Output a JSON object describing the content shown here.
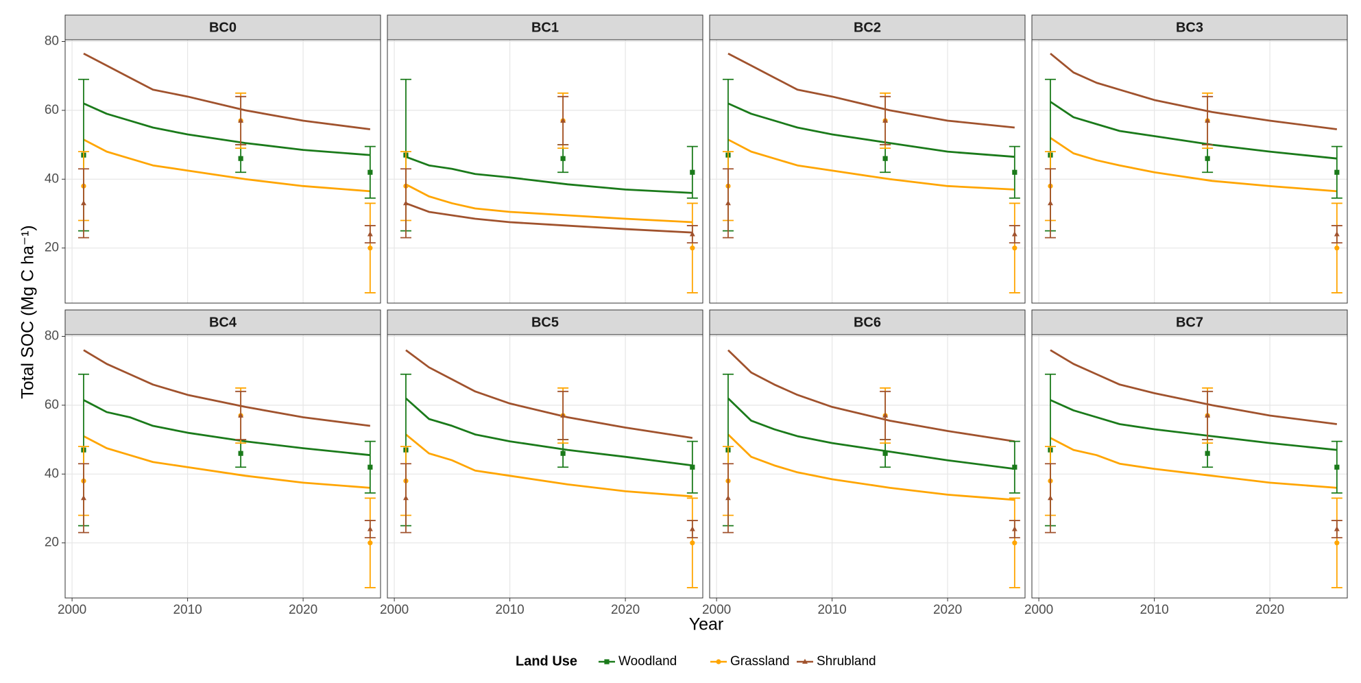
{
  "y_label": "Total SOC (Mg C ha⁻¹)",
  "x_label": "Year",
  "legend_title": "Land Use",
  "chart_data": [
    {
      "type": "line",
      "title": "BC0",
      "xlim": [
        1999.4,
        2026.7
      ],
      "ylim": [
        4,
        80.5
      ],
      "xticks": [
        2000,
        2010,
        2020
      ],
      "yticks": [
        20,
        40,
        60,
        80
      ],
      "grid": true,
      "x": [
        2001,
        2003,
        2005,
        2007,
        2010,
        2015,
        2020,
        2025.8
      ],
      "series": [
        {
          "name": "Woodland",
          "color": "#1a7a1a",
          "marker": "square",
          "values": [
            62,
            59,
            57,
            55,
            53,
            50.5,
            48.5,
            47
          ],
          "obs_x": [
            2001,
            2014.6,
            2025.8
          ],
          "obs_values": [
            47,
            46,
            42
          ],
          "obs_errors": [
            22,
            4,
            7.5
          ]
        },
        {
          "name": "Grassland",
          "color": "#ffa500",
          "marker": "circle",
          "values": [
            51.5,
            48,
            46,
            44,
            42.5,
            40,
            38,
            36.5
          ],
          "obs_x": [
            2001,
            2014.6,
            2025.8
          ],
          "obs_values": [
            38,
            57,
            20
          ],
          "obs_errors": [
            10,
            8,
            13
          ]
        },
        {
          "name": "Shrubland",
          "color": "#a0522d",
          "marker": "triangle",
          "values": [
            76.5,
            73,
            69.5,
            66,
            64,
            60,
            57,
            54.5
          ],
          "obs_x": [
            2001,
            2014.6,
            2025.8
          ],
          "obs_values": [
            33,
            57,
            24
          ],
          "obs_errors": [
            10,
            7,
            2.5
          ]
        }
      ]
    },
    {
      "type": "line",
      "title": "BC1",
      "xlim": [
        1999.4,
        2026.7
      ],
      "ylim": [
        4,
        80.5
      ],
      "xticks": [
        2000,
        2010,
        2020
      ],
      "yticks": [
        20,
        40,
        60,
        80
      ],
      "grid": true,
      "x": [
        2001,
        2003,
        2005,
        2007,
        2010,
        2015,
        2020,
        2025.8
      ],
      "series": [
        {
          "name": "Woodland",
          "color": "#1a7a1a",
          "marker": "square",
          "values": [
            46.5,
            44,
            43,
            41.5,
            40.5,
            38.5,
            37,
            36
          ],
          "obs_x": [
            2001,
            2014.6,
            2025.8
          ],
          "obs_values": [
            47,
            46,
            42
          ],
          "obs_errors": [
            22,
            4,
            7.5
          ]
        },
        {
          "name": "Grassland",
          "color": "#ffa500",
          "marker": "circle",
          "values": [
            38.5,
            35,
            33,
            31.5,
            30.5,
            29.5,
            28.5,
            27.5
          ],
          "obs_x": [
            2001,
            2014.6,
            2025.8
          ],
          "obs_values": [
            38,
            57,
            20
          ],
          "obs_errors": [
            10,
            8,
            13
          ]
        },
        {
          "name": "Shrubland",
          "color": "#a0522d",
          "marker": "triangle",
          "values": [
            33,
            30.5,
            29.5,
            28.5,
            27.5,
            26.5,
            25.5,
            24.5
          ],
          "obs_x": [
            2001,
            2014.6,
            2025.8
          ],
          "obs_values": [
            33,
            57,
            24
          ],
          "obs_errors": [
            10,
            7,
            2.5
          ]
        }
      ]
    },
    {
      "type": "line",
      "title": "BC2",
      "xlim": [
        1999.4,
        2026.7
      ],
      "ylim": [
        4,
        80.5
      ],
      "xticks": [
        2000,
        2010,
        2020
      ],
      "yticks": [
        20,
        40,
        60,
        80
      ],
      "grid": true,
      "x": [
        2001,
        2003,
        2005,
        2007,
        2010,
        2015,
        2020,
        2025.8
      ],
      "series": [
        {
          "name": "Woodland",
          "color": "#1a7a1a",
          "marker": "square",
          "values": [
            62,
            59,
            57,
            55,
            53,
            50.5,
            48,
            46.5
          ],
          "obs_x": [
            2001,
            2014.6,
            2025.8
          ],
          "obs_values": [
            47,
            46,
            42
          ],
          "obs_errors": [
            22,
            4,
            7.5
          ]
        },
        {
          "name": "Grassland",
          "color": "#ffa500",
          "marker": "circle",
          "values": [
            51.5,
            48,
            46,
            44,
            42.5,
            40,
            38,
            37
          ],
          "obs_x": [
            2001,
            2014.6,
            2025.8
          ],
          "obs_values": [
            38,
            57,
            20
          ],
          "obs_errors": [
            10,
            8,
            13
          ]
        },
        {
          "name": "Shrubland",
          "color": "#a0522d",
          "marker": "triangle",
          "values": [
            76.5,
            73,
            69.5,
            66,
            64,
            60,
            57,
            55
          ],
          "obs_x": [
            2001,
            2014.6,
            2025.8
          ],
          "obs_values": [
            33,
            57,
            24
          ],
          "obs_errors": [
            10,
            7,
            2.5
          ]
        }
      ]
    },
    {
      "type": "line",
      "title": "BC3",
      "xlim": [
        1999.4,
        2026.7
      ],
      "ylim": [
        4,
        80.5
      ],
      "xticks": [
        2000,
        2010,
        2020
      ],
      "yticks": [
        20,
        40,
        60,
        80
      ],
      "grid": true,
      "x": [
        2001,
        2003,
        2005,
        2007,
        2010,
        2015,
        2020,
        2025.8
      ],
      "series": [
        {
          "name": "Woodland",
          "color": "#1a7a1a",
          "marker": "square",
          "values": [
            62.5,
            58,
            56,
            54,
            52.5,
            50,
            48,
            46
          ],
          "obs_x": [
            2001,
            2014.6,
            2025.8
          ],
          "obs_values": [
            47,
            46,
            42
          ],
          "obs_errors": [
            22,
            4,
            7.5
          ]
        },
        {
          "name": "Grassland",
          "color": "#ffa500",
          "marker": "circle",
          "values": [
            52,
            47.5,
            45.5,
            44,
            42,
            39.5,
            38,
            36.5
          ],
          "obs_x": [
            2001,
            2014.6,
            2025.8
          ],
          "obs_values": [
            38,
            57,
            20
          ],
          "obs_errors": [
            10,
            8,
            13
          ]
        },
        {
          "name": "Shrubland",
          "color": "#a0522d",
          "marker": "triangle",
          "values": [
            76.5,
            71,
            68,
            66,
            63,
            59.5,
            57,
            54.5
          ],
          "obs_x": [
            2001,
            2014.6,
            2025.8
          ],
          "obs_values": [
            33,
            57,
            24
          ],
          "obs_errors": [
            10,
            7,
            2.5
          ]
        }
      ]
    },
    {
      "type": "line",
      "title": "BC4",
      "xlim": [
        1999.4,
        2026.7
      ],
      "ylim": [
        4,
        80.5
      ],
      "xticks": [
        2000,
        2010,
        2020
      ],
      "yticks": [
        20,
        40,
        60,
        80
      ],
      "grid": true,
      "x": [
        2001,
        2003,
        2005,
        2007,
        2010,
        2015,
        2020,
        2025.8
      ],
      "series": [
        {
          "name": "Woodland",
          "color": "#1a7a1a",
          "marker": "square",
          "values": [
            61.5,
            58,
            56.5,
            54,
            52,
            49.5,
            47.5,
            45.5
          ],
          "obs_x": [
            2001,
            2014.6,
            2025.8
          ],
          "obs_values": [
            47,
            46,
            42
          ],
          "obs_errors": [
            22,
            4,
            7.5
          ]
        },
        {
          "name": "Grassland",
          "color": "#ffa500",
          "marker": "circle",
          "values": [
            51,
            47.5,
            45.5,
            43.5,
            42,
            39.5,
            37.5,
            36
          ],
          "obs_x": [
            2001,
            2014.6,
            2025.8
          ],
          "obs_values": [
            38,
            57,
            20
          ],
          "obs_errors": [
            10,
            8,
            13
          ]
        },
        {
          "name": "Shrubland",
          "color": "#a0522d",
          "marker": "triangle",
          "values": [
            76,
            72,
            69,
            66,
            63,
            59.5,
            56.5,
            54
          ],
          "obs_x": [
            2001,
            2014.6,
            2025.8
          ],
          "obs_values": [
            33,
            57,
            24
          ],
          "obs_errors": [
            10,
            7,
            2.5
          ]
        }
      ]
    },
    {
      "type": "line",
      "title": "BC5",
      "xlim": [
        1999.4,
        2026.7
      ],
      "ylim": [
        4,
        80.5
      ],
      "xticks": [
        2000,
        2010,
        2020
      ],
      "yticks": [
        20,
        40,
        60,
        80
      ],
      "grid": true,
      "x": [
        2001,
        2003,
        2005,
        2007,
        2010,
        2015,
        2020,
        2025.8
      ],
      "series": [
        {
          "name": "Woodland",
          "color": "#1a7a1a",
          "marker": "square",
          "values": [
            62,
            56,
            54,
            51.5,
            49.5,
            47,
            45,
            42.5
          ],
          "obs_x": [
            2001,
            2014.6,
            2025.8
          ],
          "obs_values": [
            47,
            46,
            42
          ],
          "obs_errors": [
            22,
            4,
            7.5
          ]
        },
        {
          "name": "Grassland",
          "color": "#ffa500",
          "marker": "circle",
          "values": [
            51.5,
            46,
            44,
            41,
            39.5,
            37,
            35,
            33.5
          ],
          "obs_x": [
            2001,
            2014.6,
            2025.8
          ],
          "obs_values": [
            38,
            57,
            20
          ],
          "obs_errors": [
            10,
            8,
            13
          ]
        },
        {
          "name": "Shrubland",
          "color": "#a0522d",
          "marker": "triangle",
          "values": [
            76,
            71,
            67.5,
            64,
            60.5,
            56.5,
            53.5,
            50.5
          ],
          "obs_x": [
            2001,
            2014.6,
            2025.8
          ],
          "obs_values": [
            33,
            57,
            24
          ],
          "obs_errors": [
            10,
            7,
            2.5
          ]
        }
      ]
    },
    {
      "type": "line",
      "title": "BC6",
      "xlim": [
        1999.4,
        2026.7
      ],
      "ylim": [
        4,
        80.5
      ],
      "xticks": [
        2000,
        2010,
        2020
      ],
      "yticks": [
        20,
        40,
        60,
        80
      ],
      "grid": true,
      "x": [
        2001,
        2003,
        2005,
        2007,
        2010,
        2015,
        2020,
        2025.8
      ],
      "series": [
        {
          "name": "Woodland",
          "color": "#1a7a1a",
          "marker": "square",
          "values": [
            62,
            55.5,
            53,
            51,
            49,
            46.5,
            44,
            41.5
          ],
          "obs_x": [
            2001,
            2014.6,
            2025.8
          ],
          "obs_values": [
            47,
            46,
            42
          ],
          "obs_errors": [
            22,
            4,
            7.5
          ]
        },
        {
          "name": "Grassland",
          "color": "#ffa500",
          "marker": "circle",
          "values": [
            51.5,
            45,
            42.5,
            40.5,
            38.5,
            36,
            34,
            32.5
          ],
          "obs_x": [
            2001,
            2014.6,
            2025.8
          ],
          "obs_values": [
            38,
            57,
            20
          ],
          "obs_errors": [
            10,
            8,
            13
          ]
        },
        {
          "name": "Shrubland",
          "color": "#a0522d",
          "marker": "triangle",
          "values": [
            76,
            69.5,
            66,
            63,
            59.5,
            55.5,
            52.5,
            49.5
          ],
          "obs_x": [
            2001,
            2014.6,
            2025.8
          ],
          "obs_values": [
            33,
            57,
            24
          ],
          "obs_errors": [
            10,
            7,
            2.5
          ]
        }
      ]
    },
    {
      "type": "line",
      "title": "BC7",
      "xlim": [
        1999.4,
        2026.7
      ],
      "ylim": [
        4,
        80.5
      ],
      "xticks": [
        2000,
        2010,
        2020
      ],
      "yticks": [
        20,
        40,
        60,
        80
      ],
      "grid": true,
      "x": [
        2001,
        2003,
        2005,
        2007,
        2010,
        2015,
        2020,
        2025.8
      ],
      "series": [
        {
          "name": "Woodland",
          "color": "#1a7a1a",
          "marker": "square",
          "values": [
            61.5,
            58.5,
            56.5,
            54.5,
            53,
            51,
            49,
            47
          ],
          "obs_x": [
            2001,
            2014.6,
            2025.8
          ],
          "obs_values": [
            47,
            46,
            42
          ],
          "obs_errors": [
            22,
            4,
            7.5
          ]
        },
        {
          "name": "Grassland",
          "color": "#ffa500",
          "marker": "circle",
          "values": [
            50.5,
            47,
            45.5,
            43,
            41.5,
            39.5,
            37.5,
            36
          ],
          "obs_x": [
            2001,
            2014.6,
            2025.8
          ],
          "obs_values": [
            38,
            57,
            20
          ],
          "obs_errors": [
            10,
            8,
            13
          ]
        },
        {
          "name": "Shrubland",
          "color": "#a0522d",
          "marker": "triangle",
          "values": [
            76,
            72,
            69,
            66,
            63.5,
            60,
            57,
            54.5
          ],
          "obs_x": [
            2001,
            2014.6,
            2025.8
          ],
          "obs_values": [
            33,
            57,
            24
          ],
          "obs_errors": [
            10,
            7,
            2.5
          ]
        }
      ]
    }
  ]
}
